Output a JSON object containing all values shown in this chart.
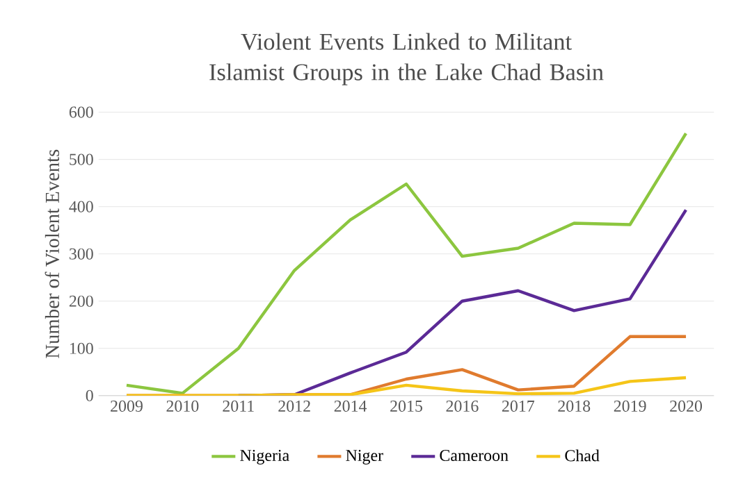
{
  "chart_data": {
    "type": "line",
    "title": "Violent Events Linked to Militant Islamist Groups in the Lake Chad Basin",
    "ylabel": "Number of Violent Events",
    "categories": [
      "2009",
      "2010",
      "2011",
      "2012",
      "2014",
      "2015",
      "2016",
      "2017",
      "2018",
      "2019",
      "2020"
    ],
    "series": [
      {
        "name": "Nigeria",
        "color": "#8cc63f",
        "values": [
          22,
          5,
          100,
          265,
          372,
          448,
          295,
          312,
          365,
          362,
          555
        ]
      },
      {
        "name": "Niger",
        "color": "#e07b2e",
        "values": [
          0,
          0,
          0,
          2,
          2,
          35,
          55,
          12,
          20,
          125,
          125
        ]
      },
      {
        "name": "Cameroon",
        "color": "#5b2a96",
        "values": [
          null,
          null,
          0,
          2,
          48,
          92,
          200,
          222,
          180,
          205,
          393
        ]
      },
      {
        "name": "Chad",
        "color": "#f5c518",
        "values": [
          0,
          0,
          0,
          2,
          2,
          22,
          10,
          4,
          5,
          30,
          38
        ]
      }
    ],
    "ylim": [
      0,
      600
    ],
    "yticks": [
      0,
      100,
      200,
      300,
      400,
      500,
      600
    ],
    "grid": "y",
    "legend": "bottom",
    "marker": "none",
    "line_style": "solid"
  }
}
